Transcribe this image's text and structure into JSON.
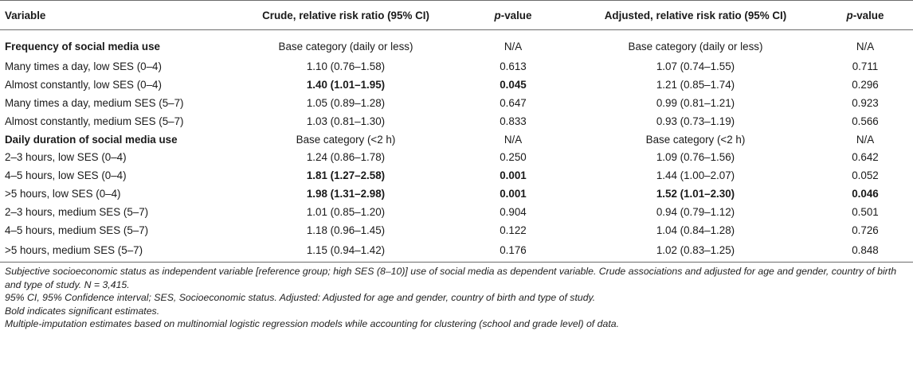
{
  "headers": {
    "variable": "Variable",
    "crude": "Crude, relative risk ratio (95% CI)",
    "crude_p_italic": "p",
    "crude_p_rest": "-value",
    "adjusted": "Adjusted, relative risk ratio (95% CI)",
    "adj_p_italic": "p",
    "adj_p_rest": "-value"
  },
  "rows": [
    {
      "label": "Frequency of social media use",
      "crude": "Base category (daily or less)",
      "crude_p": "N/A",
      "adj": "Base category (daily or less)",
      "adj_p": "N/A"
    },
    {
      "label": "Many times a day, low SES (0–4)",
      "crude": "1.10 (0.76–1.58)",
      "crude_p": "0.613",
      "adj": "1.07 (0.74–1.55)",
      "adj_p": "0.711"
    },
    {
      "label": "Almost constantly, low SES (0–4)",
      "crude": "1.40 (1.01–1.95)",
      "crude_p": "0.045",
      "adj": "1.21 (0.85–1.74)",
      "adj_p": "0.296"
    },
    {
      "label": "Many times a day, medium SES (5–7)",
      "crude": "1.05 (0.89–1.28)",
      "crude_p": "0.647",
      "adj": "0.99 (0.81–1.21)",
      "adj_p": "0.923"
    },
    {
      "label": "Almost constantly, medium SES (5–7)",
      "crude": "1.03 (0.81–1.30)",
      "crude_p": "0.833",
      "adj": "0.93 (0.73–1.19)",
      "adj_p": "0.566"
    },
    {
      "label": "Daily duration of social media use",
      "crude": "Base category (<2 h)",
      "crude_p": "N/A",
      "adj": "Base category (<2 h)",
      "adj_p": "N/A"
    },
    {
      "label": "2–3 hours, low SES (0–4)",
      "crude": "1.24 (0.86–1.78)",
      "crude_p": "0.250",
      "adj": "1.09 (0.76–1.56)",
      "adj_p": "0.642"
    },
    {
      "label": "4–5 hours, low SES (0–4)",
      "crude": "1.81 (1.27–2.58)",
      "crude_p": "0.001",
      "adj": "1.44 (1.00–2.07)",
      "adj_p": "0.052"
    },
    {
      "label": ">5 hours, low SES (0–4)",
      "crude": "1.98 (1.31–2.98)",
      "crude_p": "0.001",
      "adj": "1.52 (1.01–2.30)",
      "adj_p": "0.046"
    },
    {
      "label": "2–3 hours, medium SES (5–7)",
      "crude": "1.01 (0.85–1.20)",
      "crude_p": "0.904",
      "adj": "0.94 (0.79–1.12)",
      "adj_p": "0.501"
    },
    {
      "label": "4–5 hours, medium SES (5–7)",
      "crude": "1.18 (0.96–1.45)",
      "crude_p": "0.122",
      "adj": "1.04 (0.84–1.28)",
      "adj_p": "0.726"
    },
    {
      "label": ">5 hours, medium SES (5–7)",
      "crude": "1.15 (0.94–1.42)",
      "crude_p": "0.176",
      "adj": "1.02 (0.83–1.25)",
      "adj_p": "0.848"
    }
  ],
  "notes": [
    "Subjective socioeconomic status as independent variable [reference group; high SES (8–10)] use of social media as dependent variable. Crude associations and adjusted for age and gender, country of birth and type of study. N = 3,415.",
    "95% CI, 95% Confidence interval; SES, Socioeconomic status. Adjusted: Adjusted for age and gender, country of birth and type of study.",
    "Bold indicates significant estimates.",
    "Multiple-imputation estimates based on multinomial logistic regression models while accounting for clustering (school and grade level) of data."
  ]
}
